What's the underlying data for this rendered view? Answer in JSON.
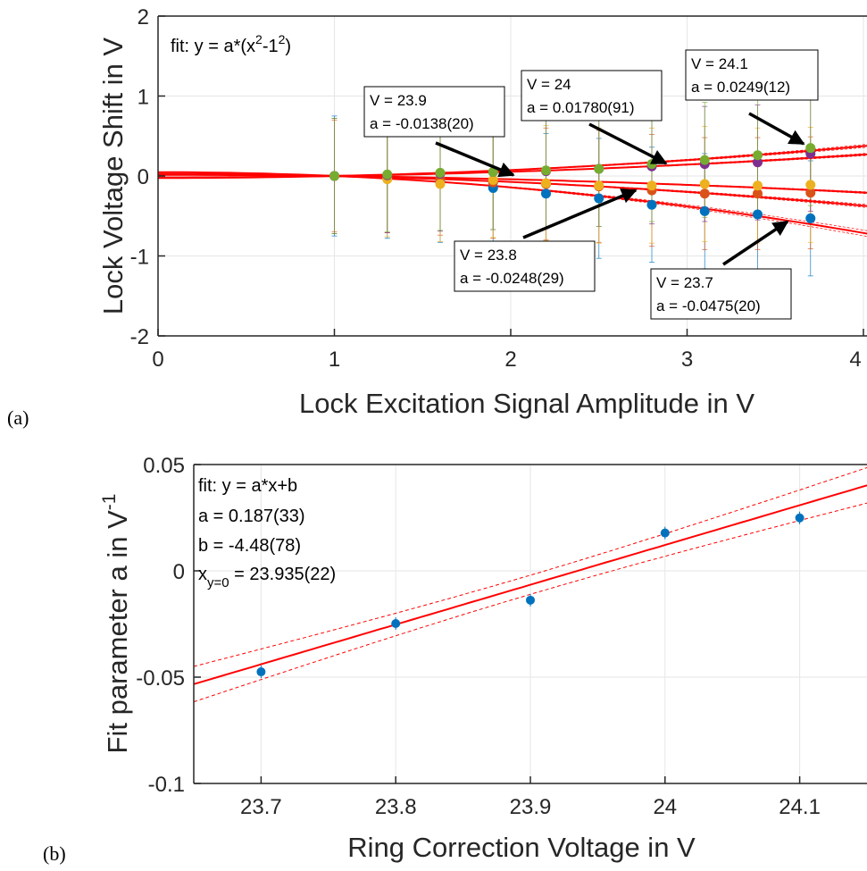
{
  "colors": {
    "blue": "#0072bd",
    "orange": "#d95319",
    "yellow": "#edb120",
    "purple": "#7e2f8e",
    "green": "#77ac30",
    "fit_red": "#ff0000"
  },
  "chart_data": [
    {
      "panel_label": "(a)",
      "type": "scatter",
      "xlabel": "Lock Excitation Signal Amplitude in V",
      "ylabel": "Lock Voltage Shift in V",
      "xlim": [
        0,
        4
      ],
      "ylim": [
        -2,
        2
      ],
      "xticks": [
        "0",
        "1",
        "2",
        "3",
        "4"
      ],
      "yticks": [
        "2",
        "1",
        "0",
        "-1",
        "-2"
      ],
      "grid": true,
      "legend": "none",
      "fit_label": {
        "prefix": "fit: y = a*(x",
        "exp1": "2",
        "mid": "-1",
        "exp2": "2",
        "suffix": ")"
      },
      "x": [
        1.0,
        1.3,
        1.6,
        1.9,
        2.2,
        2.5,
        2.8,
        3.1,
        3.4,
        3.7
      ],
      "series": [
        {
          "name": "V = 23.7",
          "color": "#0072bd",
          "a": -0.0475,
          "values": [
            0.0,
            -0.03,
            -0.08,
            -0.15,
            -0.22,
            -0.28,
            -0.36,
            -0.44,
            -0.48,
            -0.53
          ],
          "errors": [
            0.75,
            0.75,
            0.75,
            0.75,
            0.75,
            0.75,
            0.72,
            0.72,
            0.72,
            0.72
          ]
        },
        {
          "name": "V = 23.8",
          "color": "#d95319",
          "a": -0.0248,
          "values": [
            0.0,
            -0.01,
            -0.04,
            -0.08,
            -0.1,
            -0.13,
            -0.18,
            -0.22,
            -0.22,
            -0.21
          ],
          "errors": [
            0.7,
            0.7,
            0.7,
            0.7,
            0.7,
            0.7,
            0.7,
            0.7,
            0.7,
            0.7
          ]
        },
        {
          "name": "V = 23.9",
          "color": "#edb120",
          "a": -0.0138,
          "values": [
            0.0,
            -0.04,
            -0.1,
            -0.05,
            -0.09,
            -0.12,
            -0.12,
            -0.1,
            -0.12,
            -0.11
          ],
          "errors": [
            0.72,
            0.72,
            0.72,
            0.72,
            0.72,
            0.72,
            0.72,
            0.72,
            0.72,
            0.72
          ]
        },
        {
          "name": "V = 24",
          "color": "#7e2f8e",
          "a": 0.0178,
          "values": [
            0.0,
            0.01,
            0.03,
            0.05,
            0.06,
            0.09,
            0.12,
            0.15,
            0.17,
            0.28
          ],
          "errors": [
            0.72,
            0.72,
            0.72,
            0.72,
            0.72,
            0.72,
            0.72,
            0.72,
            0.72,
            0.72
          ]
        },
        {
          "name": "V = 24.1",
          "color": "#77ac30",
          "a": 0.0249,
          "values": [
            0.0,
            0.02,
            0.04,
            0.05,
            0.07,
            0.09,
            0.15,
            0.2,
            0.26,
            0.35
          ],
          "errors": [
            0.72,
            0.72,
            0.72,
            0.72,
            0.72,
            0.72,
            0.72,
            0.72,
            0.72,
            0.72
          ]
        }
      ],
      "annotations": [
        {
          "line1": "V = 24.1",
          "line2": "a = 0.0249(12)"
        },
        {
          "line1": "V = 24",
          "line2": "a = 0.01780(91)"
        },
        {
          "line1": "V = 23.9",
          "line2": "a = -0.0138(20)"
        },
        {
          "line1": "V = 23.8",
          "line2": "a = -0.0248(29)"
        },
        {
          "line1": "V = 23.7",
          "line2": "a = -0.0475(20)"
        }
      ]
    },
    {
      "panel_label": "(b)",
      "type": "scatter",
      "xlabel": "Ring Correction Voltage in V",
      "ylabel_main": "Fit parameter a in V",
      "ylabel_sup": "-1",
      "xlim": [
        23.65,
        24.15
      ],
      "ylim": [
        -0.1,
        0.05
      ],
      "xticks": [
        "23.7",
        "23.8",
        "23.9",
        "24",
        "24.1"
      ],
      "yticks": [
        "0.05",
        "0",
        "-0.05",
        "-0.1"
      ],
      "grid": true,
      "legend": "none",
      "fit_lines": {
        "line1": "fit: y = a*x+b",
        "line2": "a = 0.187(33)",
        "line3": "b = -4.48(78)",
        "line4_pre": "x",
        "line4_sub": "y=0",
        "line4_post": " = 23.935(22)"
      },
      "fit": {
        "slope": 0.187,
        "x0": 23.935
      },
      "x": [
        23.7,
        23.8,
        23.9,
        24.0,
        24.1
      ],
      "values": [
        -0.0475,
        -0.0248,
        -0.0138,
        0.0178,
        0.0249
      ]
    }
  ]
}
